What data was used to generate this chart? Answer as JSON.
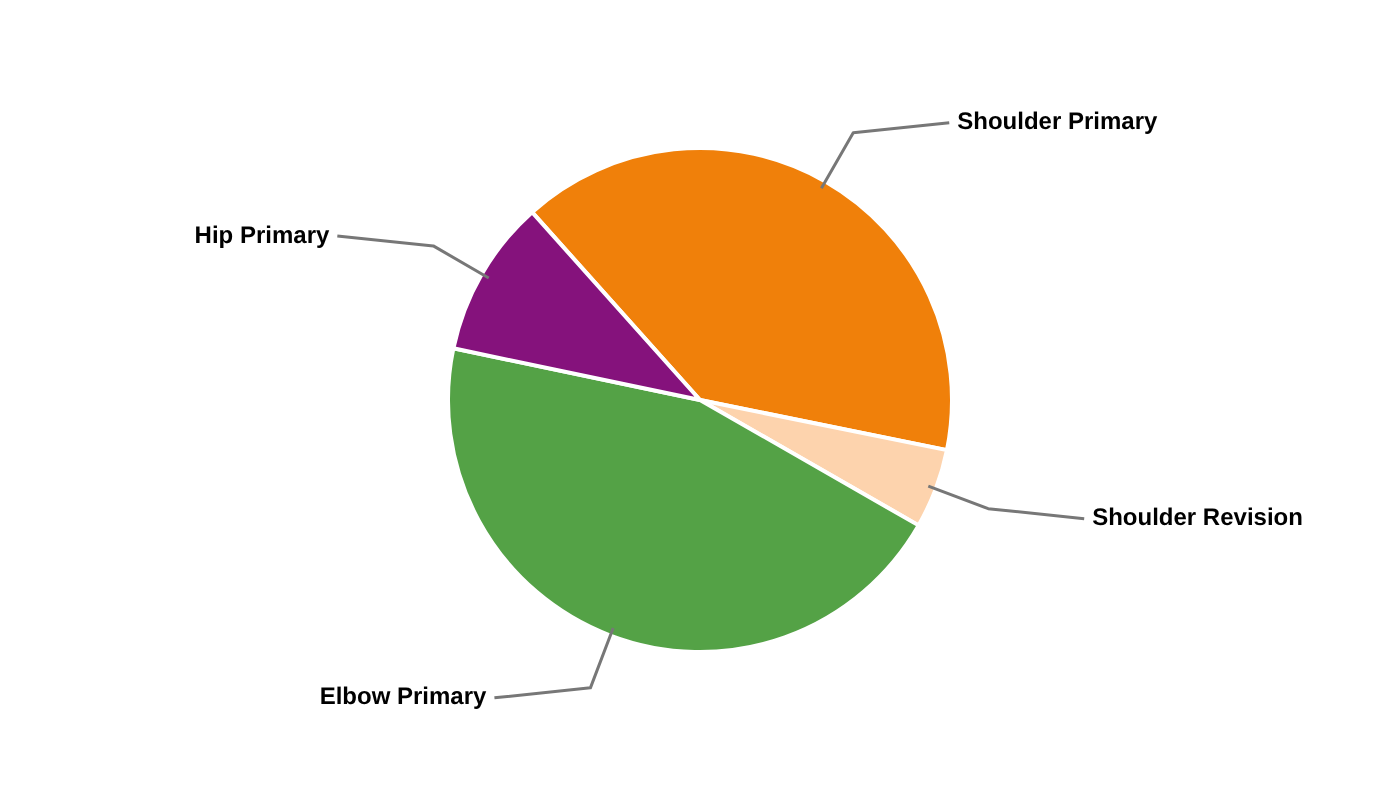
{
  "chart_data": {
    "type": "pie",
    "categories": [
      "Shoulder Primary",
      "Shoulder Revision",
      "Elbow Primary",
      "Hip Primary"
    ],
    "values": [
      39.8,
      5.1,
      45.0,
      10.1
    ],
    "colors": [
      "#f0800a",
      "#fdd3ad",
      "#54a246",
      "#85127c"
    ],
    "legend": false
  }
}
